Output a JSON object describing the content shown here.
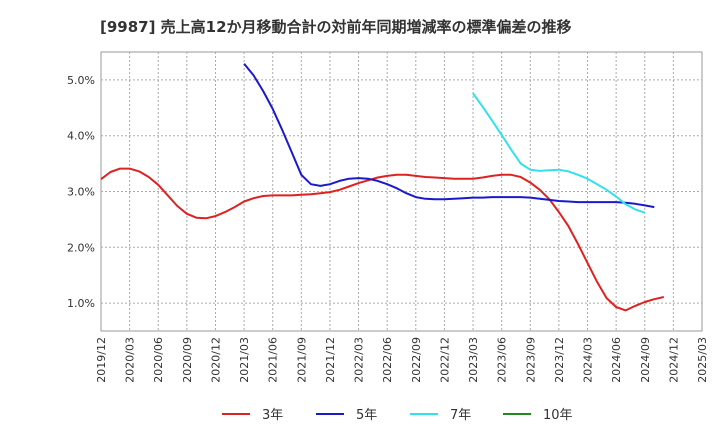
{
  "chart_data": {
    "type": "line",
    "title": "[9987]  売上高12か月移動合計の対前年同期増減率の標準偏差の推移",
    "xlabel": "",
    "ylabel": "",
    "ylim": [
      0.5,
      5.5
    ],
    "y_ticks": [
      1.0,
      2.0,
      3.0,
      4.0,
      5.0
    ],
    "y_tick_labels": [
      "1.0%",
      "2.0%",
      "3.0%",
      "4.0%",
      "5.0%"
    ],
    "x_tick_labels": [
      "2019/12",
      "2020/03",
      "2020/06",
      "2020/09",
      "2020/12",
      "2021/03",
      "2021/06",
      "2021/09",
      "2021/12",
      "2022/03",
      "2022/06",
      "2022/09",
      "2022/12",
      "2023/03",
      "2023/06",
      "2023/09",
      "2023/12",
      "2024/03",
      "2024/06",
      "2024/09",
      "2024/12",
      "2025/03"
    ],
    "grid": true,
    "legend_position": "bottom",
    "series": [
      {
        "name": "3年",
        "color": "#dd2222",
        "start_month": 0,
        "values": [
          3.22,
          3.35,
          3.41,
          3.41,
          3.36,
          3.26,
          3.12,
          2.93,
          2.74,
          2.6,
          2.53,
          2.52,
          2.56,
          2.63,
          2.72,
          2.82,
          2.88,
          2.92,
          2.93,
          2.93,
          2.93,
          2.94,
          2.95,
          2.97,
          2.99,
          3.03,
          3.09,
          3.15,
          3.2,
          3.25,
          3.28,
          3.3,
          3.3,
          3.28,
          3.26,
          3.25,
          3.24,
          3.23,
          3.23,
          3.23,
          3.25,
          3.28,
          3.3,
          3.3,
          3.26,
          3.16,
          3.03,
          2.86,
          2.63,
          2.38,
          2.06,
          1.72,
          1.38,
          1.09,
          0.93,
          0.87,
          0.95,
          1.02,
          1.07,
          1.11
        ]
      },
      {
        "name": "5年",
        "color": "#1a1acc",
        "start_month": 15,
        "values": [
          5.29,
          5.08,
          4.8,
          4.48,
          4.1,
          3.7,
          3.3,
          3.13,
          3.1,
          3.13,
          3.19,
          3.23,
          3.24,
          3.23,
          3.19,
          3.13,
          3.06,
          2.97,
          2.9,
          2.87,
          2.86,
          2.86,
          2.87,
          2.88,
          2.89,
          2.89,
          2.9,
          2.9,
          2.9,
          2.9,
          2.89,
          2.87,
          2.85,
          2.83,
          2.82,
          2.81,
          2.81,
          2.81,
          2.81,
          2.81,
          2.8,
          2.78,
          2.75,
          2.72
        ]
      },
      {
        "name": "7年",
        "color": "#33e0ee",
        "start_month": 39,
        "values": [
          4.76,
          4.52,
          4.27,
          4.01,
          3.75,
          3.5,
          3.39,
          3.37,
          3.38,
          3.39,
          3.36,
          3.3,
          3.23,
          3.13,
          3.03,
          2.91,
          2.77,
          2.68,
          2.62
        ]
      },
      {
        "name": "10年",
        "color": "#228822",
        "start_month": 0,
        "values": []
      }
    ]
  }
}
